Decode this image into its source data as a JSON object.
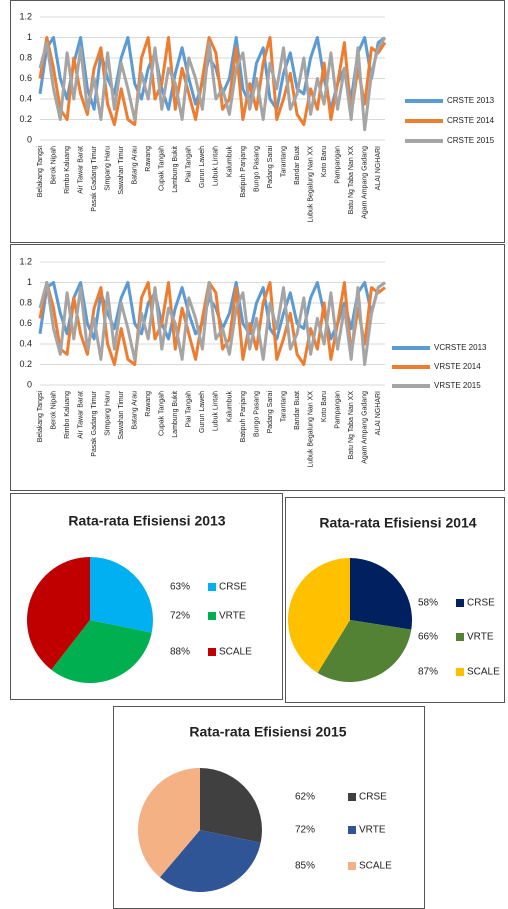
{
  "chart_data": [
    {
      "type": "line",
      "categories": [
        "Belakang Tangsi",
        null,
        "Berok Nipah",
        null,
        "Rimbo Kaluang",
        null,
        "Air Tawar Barat",
        null,
        "Pasak Gadang Timur",
        null,
        "Simpang Haru",
        null,
        "Sawahan Timur",
        null,
        "Batang Arau",
        null,
        "Rawang",
        null,
        "Cupak Tangah",
        null,
        "Lambung Bukit",
        null,
        "Piai Tangah",
        null,
        "Gurun Laweh",
        null,
        "Lubuk Lintah",
        null,
        "Kalumbuk",
        null,
        "Batipuh Panjang",
        null,
        "Bungo Pasang",
        null,
        "Padang Sarai",
        null,
        "Tarantang",
        null,
        "Bandar Buat",
        null,
        "Lubuk Begalung Nan XX",
        null,
        "Koto Baru",
        null,
        "Pampangan",
        null,
        "Batu Ng Taba Nan XX",
        null,
        "Agam Ampang Gadang",
        null,
        "ALAI NGHARI",
        null
      ],
      "series": [
        {
          "name": "CRSTE 2013",
          "color": "#5b9bd5",
          "values": [
            0.45,
            0.9,
            1,
            0.6,
            0.4,
            0.75,
            1,
            0.5,
            0.3,
            0.85,
            0.6,
            0.45,
            0.8,
            1,
            0.55,
            0.4,
            0.7,
            0.85,
            0.5,
            0.3,
            0.65,
            0.9,
            0.6,
            0.35,
            0.55,
            0.8,
            0.7,
            0.45,
            0.6,
            1,
            0.5,
            0.35,
            0.75,
            0.9,
            0.4,
            0.3,
            0.65,
            0.85,
            0.5,
            0.45,
            0.8,
            1,
            0.6,
            0.3,
            0.55,
            0.7,
            0.4,
            0.85,
            1,
            0.6,
            0.95,
            1
          ]
        },
        {
          "name": "CRSTE 2014",
          "color": "#ed7d31",
          "values": [
            0.6,
            1,
            0.7,
            0.3,
            0.2,
            0.8,
            0.45,
            0.25,
            0.7,
            0.9,
            0.35,
            0.15,
            0.5,
            0.2,
            0.15,
            0.8,
            1,
            0.4,
            0.55,
            1,
            0.3,
            0.7,
            0.45,
            0.2,
            0.6,
            1,
            0.85,
            0.3,
            0.4,
            0.9,
            0.2,
            0.55,
            0.3,
            0.75,
            1,
            0.2,
            0.4,
            0.65,
            0.25,
            0.15,
            0.5,
            0.3,
            0.75,
            0.2,
            0.55,
            0.95,
            0.25,
            0.7,
            0.35,
            0.9,
            0.85,
            0.95
          ]
        },
        {
          "name": "CRSTE 2015",
          "color": "#a5a5a5",
          "values": [
            0.7,
            0.95,
            0.5,
            0.2,
            0.85,
            0.4,
            0.9,
            0.3,
            0.6,
            0.2,
            0.85,
            0.3,
            0.75,
            0.5,
            0.2,
            0.65,
            0.4,
            0.9,
            0.3,
            0.7,
            0.55,
            0.2,
            0.8,
            0.6,
            0.3,
            0.95,
            0.4,
            0.5,
            0.25,
            0.7,
            0.85,
            0.3,
            0.6,
            0.2,
            0.75,
            0.5,
            0.9,
            0.3,
            0.45,
            0.8,
            0.25,
            0.6,
            0.35,
            0.85,
            0.3,
            0.7,
            0.2,
            0.9,
            0.1,
            0.65,
            0.9,
            1
          ]
        }
      ],
      "ylim": [
        0,
        1.2
      ],
      "yticks": [
        0,
        0.2,
        0.4,
        0.6,
        0.8,
        1,
        1.2
      ],
      "grid": true,
      "legend": "right"
    },
    {
      "type": "line",
      "categories": [
        "Belakang Tangsi",
        null,
        "Berok Nipah",
        null,
        "Rimbo Kaluang",
        null,
        "Air Tawar Barat",
        null,
        "Pasak Gadang Timur",
        null,
        "Simpang Haru",
        null,
        "Sawahan Timur",
        null,
        "Batang Arau",
        null,
        "Rawang",
        null,
        "Cupak Tangah",
        null,
        "Lambung Bukit",
        null,
        "Piai Tangah",
        null,
        "Gurun Laweh",
        null,
        "Lubuk Lintah",
        null,
        "Kalumbuk",
        null,
        "Batipuh Panjang",
        null,
        "Bungo Pasang",
        null,
        "Padang Sarai",
        null,
        "Tarantang",
        null,
        "Bandar Buat",
        null,
        "Lubuk Begalung Nan XX",
        null,
        "Koto Baru",
        null,
        "Pampangan",
        null,
        "Batu Ng Taba Nan XX",
        null,
        "Agam Ampang Gadang",
        null,
        "ALAI NGHARI",
        null
      ],
      "series": [
        {
          "name": "VCRSTE 2013",
          "color": "#5b9bd5",
          "values": [
            0.5,
            0.95,
            1,
            0.7,
            0.5,
            0.85,
            1,
            0.6,
            0.45,
            0.9,
            0.7,
            0.55,
            0.85,
            1,
            0.6,
            0.5,
            0.8,
            0.9,
            0.6,
            0.45,
            0.75,
            0.95,
            0.7,
            0.5,
            0.6,
            0.85,
            0.75,
            0.55,
            0.7,
            1,
            0.6,
            0.5,
            0.8,
            0.95,
            0.55,
            0.45,
            0.7,
            0.9,
            0.6,
            0.55,
            0.85,
            1,
            0.7,
            0.45,
            0.6,
            0.8,
            0.55,
            0.9,
            1,
            0.7,
            0.95,
            1
          ]
        },
        {
          "name": "VRSTE 2014",
          "color": "#ed7d31",
          "values": [
            0.65,
            1,
            0.75,
            0.35,
            0.3,
            0.85,
            0.5,
            0.3,
            0.75,
            0.95,
            0.4,
            0.2,
            0.55,
            0.25,
            0.2,
            0.85,
            1,
            0.45,
            0.6,
            1,
            0.35,
            0.75,
            0.5,
            0.25,
            0.65,
            1,
            0.9,
            0.35,
            0.45,
            0.95,
            0.25,
            0.6,
            0.35,
            0.8,
            1,
            0.25,
            0.45,
            0.7,
            0.3,
            0.2,
            0.55,
            0.35,
            0.8,
            0.25,
            0.6,
            1,
            0.3,
            0.75,
            0.4,
            0.95,
            0.9,
            0.95
          ]
        },
        {
          "name": "VRSTE 2015",
          "color": "#a5a5a5",
          "values": [
            0.75,
            1,
            0.55,
            0.3,
            0.9,
            0.45,
            0.95,
            0.35,
            0.65,
            0.25,
            0.9,
            0.35,
            0.8,
            0.55,
            0.25,
            0.7,
            0.45,
            0.95,
            0.35,
            0.75,
            0.6,
            0.25,
            0.85,
            0.65,
            0.35,
            1,
            0.45,
            0.55,
            0.3,
            0.75,
            0.9,
            0.35,
            0.65,
            0.25,
            0.8,
            0.55,
            0.95,
            0.35,
            0.5,
            0.85,
            0.3,
            0.65,
            0.4,
            0.9,
            0.35,
            0.75,
            0.25,
            0.95,
            0.2,
            0.7,
            0.95,
            1
          ]
        }
      ],
      "ylim": [
        0,
        1.2
      ],
      "yticks": [
        0,
        0.2,
        0.4,
        0.6,
        0.8,
        1,
        1.2
      ],
      "grid": true,
      "legend": "right"
    },
    {
      "type": "pie",
      "title": "Rata-rata Efisiensi 2013",
      "categories": [
        "CRSE",
        "VRTE",
        "SCALE"
      ],
      "values": [
        63,
        72,
        88
      ],
      "value_labels": [
        "63%",
        "72%",
        "88%"
      ],
      "colors": [
        "#00b0f0",
        "#00b050",
        "#c00000"
      ]
    },
    {
      "type": "pie",
      "title": "Rata-rata Efisiensi 2014",
      "categories": [
        "CRSE",
        "VRTE",
        "SCALE"
      ],
      "values": [
        58,
        66,
        87
      ],
      "value_labels": [
        "58%",
        "66%",
        "87%"
      ],
      "colors": [
        "#002060",
        "#548235",
        "#ffc000"
      ]
    },
    {
      "type": "pie",
      "title": "Rata-rata Efisiensi 2015",
      "categories": [
        "CRSE",
        "VRTE",
        "SCALE"
      ],
      "values": [
        62,
        72,
        85
      ],
      "value_labels": [
        "62%",
        "72%",
        "85%"
      ],
      "colors": [
        "#404040",
        "#2f5597",
        "#f4b183"
      ]
    }
  ]
}
